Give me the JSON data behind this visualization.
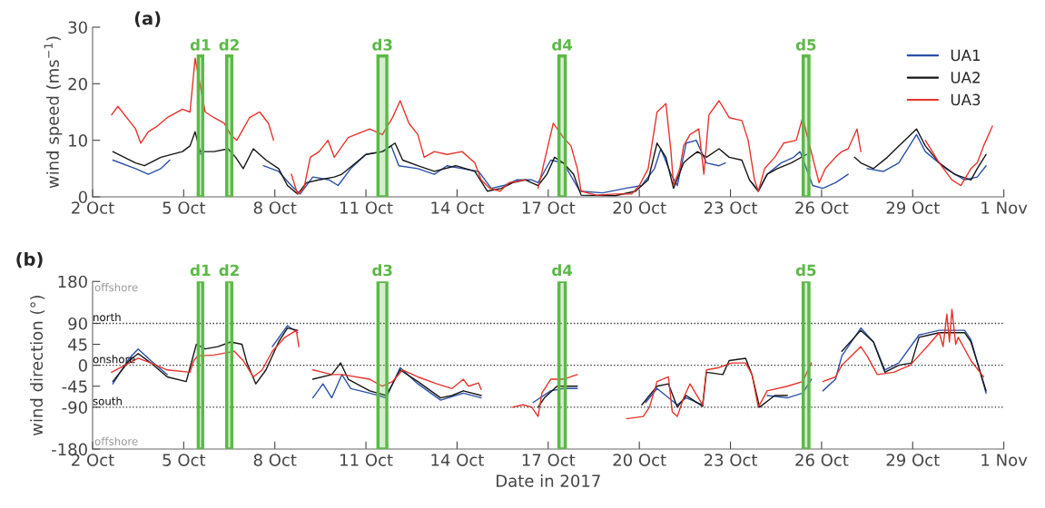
{
  "chart_data": [
    {
      "type": "line",
      "title": "(a)",
      "ylabel": "wind speed (ms$^{−1}$)",
      "legend": "top right",
      "grid": false,
      "xlim": [
        "2017-10-02",
        "2017-11-01"
      ],
      "xticks": [
        {
          "value": "2017-10-02",
          "label": "2 Oct"
        },
        {
          "value": "2017-10-05",
          "label": "5 Oct"
        },
        {
          "value": "2017-10-08",
          "label": "8 Oct"
        },
        {
          "value": "2017-10-11",
          "label": "11 Oct"
        },
        {
          "value": "2017-10-14",
          "label": "14 Oct"
        },
        {
          "value": "2017-10-17",
          "label": "17 Oct"
        },
        {
          "value": "2017-10-20",
          "label": "20 Oct"
        },
        {
          "value": "2017-10-23",
          "label": "23 Oct"
        },
        {
          "value": "2017-10-26",
          "label": "26 Oct"
        },
        {
          "value": "2017-10-29",
          "label": "29 Oct"
        },
        {
          "value": "2017-11-01",
          "label": "1 Nov"
        }
      ],
      "ylim": [
        0,
        30
      ],
      "yticks": [
        0,
        10,
        20,
        30
      ],
      "bands": [
        {
          "axis": "x",
          "from": "2017-10-05T11:30",
          "to": "2017-10-05T15:00",
          "label": "d1",
          "color": "#5cb947"
        },
        {
          "axis": "x",
          "from": "2017-10-06T10:00",
          "to": "2017-10-06T14:00",
          "label": "d2",
          "color": "#5cb947"
        },
        {
          "axis": "x",
          "from": "2017-10-11T09:30",
          "to": "2017-10-11T16:30",
          "label": "d3",
          "color": "#5cb947"
        },
        {
          "axis": "x",
          "from": "2017-10-17T08:30",
          "to": "2017-10-17T13:30",
          "label": "d4",
          "color": "#5cb947"
        },
        {
          "axis": "x",
          "from": "2017-10-25T09:30",
          "to": "2017-10-25T14:00",
          "label": "d5",
          "color": "#5cb947"
        }
      ],
      "series": [
        {
          "name": "UA1",
          "color": "#2b50a8",
          "x": [
            "2017-10-02T16:00",
            "2017-10-03T10:00",
            "2017-10-03T20:00",
            "2017-10-04T06:00",
            "2017-10-04T13:00",
            "2017-10-05T00:00",
            "2017-10-05T11:00",
            "2017-10-05T14:00",
            "2017-10-06T12:00",
            "2017-10-07T15:00",
            "2017-10-08T03:00",
            "2017-10-08T13:00",
            "2017-10-08T20:00",
            "2017-10-09T06:00",
            "2017-10-09T19:00",
            "2017-10-10T02:00",
            "2017-10-10T12:00",
            "2017-10-11T00:00",
            "2017-10-11T13:00",
            "2017-10-11T20:00",
            "2017-10-12T02:00",
            "2017-10-12T17:00",
            "2017-10-13T06:00",
            "2017-10-13T16:00",
            "2017-10-14T04:00",
            "2017-10-14T17:00",
            "2017-10-15T03:00",
            "2017-10-15T13:00",
            "2017-10-15T23:00",
            "2017-10-16T11:00",
            "2017-10-16T16:00",
            "2017-10-17T02:00",
            "2017-10-17T12:00",
            "2017-10-18T01:00",
            "2017-10-18T19:00",
            "2017-10-19T13:00",
            "2017-10-20T02:00",
            "2017-10-20T12:00",
            "2017-10-20T17:00",
            "2017-10-21T01:00",
            "2017-10-21T06:00",
            "2017-10-21T13:00",
            "2017-10-21T21:00",
            "2017-10-22T05:00",
            "2017-10-22T15:00",
            "2017-10-22T20:00",
            "2017-10-23T06:00",
            "2017-10-23T17:00",
            "2017-10-23T22:00",
            "2017-10-24T05:00",
            "2017-10-24T16:00",
            "2017-10-25T02:00",
            "2017-10-25T07:00",
            "2017-10-25T17:00",
            "2017-10-26T01:00",
            "2017-10-26T11:00",
            "2017-10-26T21:00",
            "2017-10-27T05:00",
            "2017-10-27T12:00",
            "2017-10-28T01:00",
            "2017-10-28T13:00",
            "2017-10-29T03:00",
            "2017-10-29T10:00",
            "2017-10-30T02:00",
            "2017-10-30T17:00",
            "2017-10-31T03:00",
            "2017-10-31T10:00"
          ],
          "values": [
            6.5,
            5,
            4,
            5,
            6.5,
            null,
            8,
            7.5,
            null,
            5.5,
            4.5,
            2,
            0.5,
            3.5,
            3,
            2,
            5,
            7.5,
            8,
            9,
            5.5,
            5,
            4,
            5.5,
            5,
            4.5,
            1.5,
            2,
            3,
            3,
            2.5,
            6.5,
            6,
            1,
            0.7,
            1.5,
            2,
            5,
            8.5,
            4,
            2,
            9.5,
            10,
            6,
            5.5,
            6,
            null,
            2.5,
            1,
            4,
            6,
            7,
            8,
            2,
            1.5,
            2.5,
            4,
            null,
            5,
            4.5,
            6,
            11,
            8,
            5,
            3,
            3.5,
            5.5
          ]
        },
        {
          "name": "UA2",
          "color": "#151515",
          "x": [
            "2017-10-02T16:00",
            "2017-10-03T10:00",
            "2017-10-03T17:00",
            "2017-10-04T06:00",
            "2017-10-04T23:00",
            "2017-10-05T05:00",
            "2017-10-05T09:00",
            "2017-10-05T13:00",
            "2017-10-06T00:00",
            "2017-10-06T11:00",
            "2017-10-06T17:00",
            "2017-10-06T23:00",
            "2017-10-07T07:00",
            "2017-10-07T17:00",
            "2017-10-08T03:00",
            "2017-10-08T10:00",
            "2017-10-08T18:00",
            "2017-10-09T01:00",
            "2017-10-09T11:00",
            "2017-10-09T23:00",
            "2017-10-10T05:00",
            "2017-10-11T00:00",
            "2017-10-11T13:00",
            "2017-10-11T23:00",
            "2017-10-12T05:00",
            "2017-10-12T17:00",
            "2017-10-13T06:00",
            "2017-10-13T23:00",
            "2017-10-14T14:00",
            "2017-10-15T00:00",
            "2017-10-15T11:00",
            "2017-10-15T20:00",
            "2017-10-16T06:00",
            "2017-10-16T16:00",
            "2017-10-16T23:00",
            "2017-10-17T05:00",
            "2017-10-17T12:00",
            "2017-10-17T20:00",
            "2017-10-18T02:00",
            "2017-10-19T05:00",
            "2017-10-19T21:00",
            "2017-10-20T07:00",
            "2017-10-20T14:00",
            "2017-10-20T21:00",
            "2017-10-21T03:00",
            "2017-10-21T11:00",
            "2017-10-21T16:00",
            "2017-10-21T22:00",
            "2017-10-22T05:00",
            "2017-10-22T15:00",
            "2017-10-22T23:00",
            "2017-10-23T09:00",
            "2017-10-23T15:00",
            "2017-10-23T22:00",
            "2017-10-24T05:00",
            "2017-10-24T13:00",
            "2017-10-25T00:00",
            "2017-10-25T12:00",
            "2017-10-26T00:00",
            "2017-10-27T02:00",
            "2017-10-27T07:00",
            "2017-10-27T17:00",
            "2017-10-28T04:00",
            "2017-10-28T13:00",
            "2017-10-29T03:00",
            "2017-10-29T10:00",
            "2017-10-29T21:00",
            "2017-10-30T09:00",
            "2017-10-30T22:00",
            "2017-10-31T03:00",
            "2017-10-31T10:00"
          ],
          "values": [
            8,
            6,
            5.5,
            7,
            8,
            9,
            11.5,
            8,
            8,
            8.5,
            7,
            5,
            8.5,
            6.5,
            5,
            2,
            0.5,
            2.5,
            3,
            3.5,
            4,
            7.5,
            8,
            9.5,
            6.5,
            5.5,
            4.5,
            5.5,
            4.5,
            1,
            1.5,
            2.5,
            3,
            2,
            4,
            7,
            6,
            4,
            0.3,
            0.2,
            1,
            3,
            9.5,
            7,
            1.5,
            6,
            7,
            8,
            7,
            8.5,
            7,
            6.5,
            3,
            1,
            4,
            5,
            6,
            7.5,
            null,
            7,
            6,
            5,
            7,
            9,
            12,
            9,
            6,
            4,
            3,
            5,
            7.5
          ]
        },
        {
          "name": "UA3",
          "color": "#e8332b",
          "x": [
            "2017-10-02T15:00",
            "2017-10-02T20:00",
            "2017-10-03T10:00",
            "2017-10-03T14:00",
            "2017-10-03T20:00",
            "2017-10-04T03:00",
            "2017-10-04T11:00",
            "2017-10-04T23:00",
            "2017-10-05T05:00",
            "2017-10-05T09:00",
            "2017-10-05T17:00",
            "2017-10-06T00:00",
            "2017-10-06T08:00",
            "2017-10-06T13:00",
            "2017-10-06T18:00",
            "2017-10-06T23:00",
            "2017-10-07T04:00",
            "2017-10-07T12:00",
            "2017-10-07T19:00",
            "2017-10-07T23:00",
            "2017-10-08T06:00",
            "2017-10-08T13:00",
            "2017-10-08T18:00",
            "2017-10-08T23:00",
            "2017-10-09T04:00",
            "2017-10-09T11:00",
            "2017-10-09T18:00",
            "2017-10-09T23:00",
            "2017-10-10T10:00",
            "2017-10-11T03:00",
            "2017-10-11T13:00",
            "2017-10-11T21:00",
            "2017-10-12T03:00",
            "2017-10-12T10:00",
            "2017-10-12T17:00",
            "2017-10-12T22:00",
            "2017-10-13T06:00",
            "2017-10-13T16:00",
            "2017-10-14T04:00",
            "2017-10-14T14:00",
            "2017-10-14T19:00",
            "2017-10-15T02:00",
            "2017-10-15T10:00",
            "2017-10-15T17:00",
            "2017-10-16T06:00",
            "2017-10-16T10:00",
            "2017-10-16T16:00",
            "2017-10-17T04:00",
            "2017-10-17T12:00",
            "2017-10-17T18:00",
            "2017-10-17T23:00",
            "2017-10-18T02:00",
            "2017-10-18T14:00",
            "2017-10-19T05:00",
            "2017-10-19T18:00",
            "2017-10-20T00:00",
            "2017-10-20T07:00",
            "2017-10-20T14:00",
            "2017-10-20T21:00",
            "2017-10-21T01:00",
            "2017-10-21T03:00",
            "2017-10-21T08:00",
            "2017-10-21T11:00",
            "2017-10-21T16:00",
            "2017-10-21T23:00",
            "2017-10-22T03:00",
            "2017-10-22T07:00",
            "2017-10-22T15:00",
            "2017-10-22T23:00",
            "2017-10-23T09:00",
            "2017-10-23T14:00",
            "2017-10-23T19:00",
            "2017-10-23T22:00",
            "2017-10-24T03:00",
            "2017-10-24T11:00",
            "2017-10-24T18:00",
            "2017-10-25T04:00",
            "2017-10-25T09:00",
            "2017-10-25T22:00",
            "2017-10-26T03:00",
            "2017-10-26T11:00",
            "2017-10-26T16:00",
            "2017-10-26T21:00",
            "2017-10-27T04:00",
            "2017-10-27T07:00",
            "2017-10-28T08:00",
            "2017-10-29T10:00",
            "2017-10-29T21:00",
            "2017-10-30T07:00",
            "2017-10-30T14:00",
            "2017-10-30T22:00",
            "2017-10-31T03:00",
            "2017-10-31T08:00",
            "2017-10-31T15:00"
          ],
          "values": [
            14.5,
            16,
            12,
            9.5,
            11.5,
            12.5,
            14,
            15.5,
            15,
            24.5,
            15,
            14,
            13,
            11,
            10,
            12,
            14,
            15,
            13,
            10,
            null,
            4,
            0.5,
            1.5,
            7,
            8,
            10,
            7,
            10.5,
            12,
            11,
            14,
            17,
            13,
            11,
            7,
            8,
            7.5,
            8,
            6,
            3,
            1.5,
            1,
            2.5,
            3,
            null,
            1.5,
            13,
            10.5,
            9,
            5,
            1,
            0.3,
            0.5,
            0.5,
            2,
            5,
            15,
            16.5,
            8,
            2,
            5,
            9,
            11,
            12,
            4,
            14.5,
            17,
            14,
            13.5,
            10,
            3,
            1,
            5,
            7,
            9.5,
            10,
            14,
            2.5,
            5,
            7,
            8,
            8.5,
            12,
            8,
            null,
            10,
            6,
            3,
            2,
            5,
            6,
            9,
            12.5
          ]
        }
      ]
    },
    {
      "type": "line",
      "title": "(b)",
      "xlabel": "Date in 2017",
      "ylabel": "wind direction (°)",
      "grid": false,
      "xlim": [
        "2017-10-02",
        "2017-11-01"
      ],
      "xticks": [
        {
          "value": "2017-10-02",
          "label": "2 Oct"
        },
        {
          "value": "2017-10-05",
          "label": "5 Oct"
        },
        {
          "value": "2017-10-08",
          "label": "8 Oct"
        },
        {
          "value": "2017-10-11",
          "label": "11 Oct"
        },
        {
          "value": "2017-10-14",
          "label": "14 Oct"
        },
        {
          "value": "2017-10-17",
          "label": "17 Oct"
        },
        {
          "value": "2017-10-20",
          "label": "20 Oct"
        },
        {
          "value": "2017-10-23",
          "label": "23 Oct"
        },
        {
          "value": "2017-10-26",
          "label": "26 Oct"
        },
        {
          "value": "2017-10-29",
          "label": "29 Oct"
        },
        {
          "value": "2017-11-01",
          "label": "1 Nov"
        }
      ],
      "ylim": [
        -180,
        180
      ],
      "yticks": [
        -180,
        -90,
        -45,
        0,
        45,
        90,
        180
      ],
      "ref_lines": [
        {
          "axis": "y",
          "value": 90,
          "label": "north",
          "color": "#333333",
          "line_style": "dotted"
        },
        {
          "axis": "y",
          "value": 0,
          "label": "onshore",
          "color": "#333333",
          "line_style": "dotted"
        },
        {
          "axis": "y",
          "value": -90,
          "label": "south",
          "color": "#333333",
          "line_style": "dotted"
        }
      ],
      "annotations": [
        "offshore",
        "offshore"
      ],
      "bands": [
        {
          "axis": "x",
          "from": "2017-10-05T11:30",
          "to": "2017-10-05T15:00",
          "label": "d1",
          "color": "#5cb947"
        },
        {
          "axis": "x",
          "from": "2017-10-06T10:00",
          "to": "2017-10-06T14:00",
          "label": "d2",
          "color": "#5cb947"
        },
        {
          "axis": "x",
          "from": "2017-10-11T09:30",
          "to": "2017-10-11T16:30",
          "label": "d3",
          "color": "#5cb947"
        },
        {
          "axis": "x",
          "from": "2017-10-17T08:30",
          "to": "2017-10-17T13:30",
          "label": "d4",
          "color": "#5cb947"
        },
        {
          "axis": "x",
          "from": "2017-10-25T09:30",
          "to": "2017-10-25T14:00",
          "label": "d5",
          "color": "#5cb947"
        }
      ],
      "series": [
        {
          "color": "#2b50a8",
          "x": [
            "2017-10-02T16:00",
            "2017-10-03T05:00",
            "2017-10-03T12:00",
            "2017-10-03T22:00",
            "2017-10-04T11:00",
            "2017-10-05T00:00",
            "2017-10-07T22:00",
            "2017-10-08T10:00",
            "2017-10-08T18:00",
            "2017-10-09T00:00",
            "2017-10-09T06:00",
            "2017-10-09T14:00",
            "2017-10-09T21:00",
            "2017-10-10T05:00",
            "2017-10-10T12:00",
            "2017-10-11T03:00",
            "2017-10-11T16:00",
            "2017-10-12T03:00",
            "2017-10-12T17:00",
            "2017-10-13T11:00",
            "2017-10-14T05:00",
            "2017-10-14T19:00",
            "2017-10-15T12:00",
            "2017-10-16T12:00",
            "2017-10-17T02:00",
            "2017-10-17T12:00",
            "2017-10-17T23:00",
            "2017-10-18T12:00",
            "2017-10-20T05:00",
            "2017-10-20T14:00",
            "2017-10-21T06:00",
            "2017-10-21T13:00",
            "2017-10-22T02:00",
            "2017-10-22T12:00",
            "2017-10-24T05:00",
            "2017-10-24T21:00",
            "2017-10-25T09:00",
            "2017-10-25T16:00",
            "2017-10-25T20:00",
            "2017-10-26T01:00",
            "2017-10-26T11:00",
            "2017-10-26T16:00",
            "2017-10-27T07:00",
            "2017-10-27T17:00",
            "2017-10-28T02:00",
            "2017-10-28T13:00",
            "2017-10-29T05:00",
            "2017-10-29T21:00",
            "2017-10-30T17:00",
            "2017-10-30T22:00",
            "2017-10-31T10:00"
          ],
          "values": [
            -40,
            15,
            35,
            10,
            -20,
            null,
            40,
            85,
            70,
            null,
            -70,
            -40,
            -70,
            -20,
            -50,
            -60,
            -70,
            -5,
            -40,
            -75,
            -60,
            -70,
            null,
            -80,
            -55,
            -50,
            -50,
            null,
            -80,
            -50,
            -85,
            -70,
            -85,
            null,
            -65,
            -70,
            -60,
            -30,
            null,
            -55,
            -30,
            20,
            80,
            50,
            -10,
            5,
            65,
            75,
            75,
            55,
            -60
          ]
        },
        {
          "color": "#151515",
          "x": [
            "2017-10-02T16:00",
            "2017-10-03T05:00",
            "2017-10-03T12:00",
            "2017-10-03T22:00",
            "2017-10-04T11:00",
            "2017-10-05T02:00",
            "2017-10-05T10:00",
            "2017-10-05T17:00",
            "2017-10-06T03:00",
            "2017-10-06T13:00",
            "2017-10-06T22:00",
            "2017-10-07T02:00",
            "2017-10-07T09:00",
            "2017-10-07T17:00",
            "2017-10-08T03:00",
            "2017-10-08T10:00",
            "2017-10-08T18:00",
            "2017-10-09T00:00",
            "2017-10-09T06:00",
            "2017-10-09T21:00",
            "2017-10-10T04:00",
            "2017-10-10T10:00",
            "2017-10-11T03:00",
            "2017-10-11T16:00",
            "2017-10-12T03:00",
            "2017-10-12T17:00",
            "2017-10-13T11:00",
            "2017-10-13T20:00",
            "2017-10-14T05:00",
            "2017-10-14T19:00",
            "2017-10-15T08:00",
            "2017-10-16T16:00",
            "2017-10-16T21:00",
            "2017-10-17T07:00",
            "2017-10-17T23:00",
            "2017-10-18T12:00",
            "2017-10-20T02:00",
            "2017-10-20T14:00",
            "2017-10-20T23:00",
            "2017-10-21T06:00",
            "2017-10-21T13:00",
            "2017-10-22T02:00",
            "2017-10-22T05:00",
            "2017-10-22T18:00",
            "2017-10-22T23:00",
            "2017-10-23T12:00",
            "2017-10-23T17:00",
            "2017-10-23T23:00",
            "2017-10-24T11:00",
            "2017-10-24T21:00",
            "2017-10-25T06:00",
            "2017-10-26T16:00",
            "2017-10-27T07:00",
            "2017-10-27T17:00",
            "2017-10-28T02:00",
            "2017-10-28T13:00",
            "2017-10-28T23:00",
            "2017-10-29T05:00",
            "2017-10-29T21:00",
            "2017-10-30T17:00",
            "2017-10-30T22:00",
            "2017-10-31T10:00"
          ],
          "values": [
            -35,
            10,
            25,
            5,
            -25,
            -35,
            45,
            35,
            40,
            50,
            45,
            5,
            -40,
            -10,
            50,
            80,
            75,
            null,
            -30,
            -20,
            5,
            -30,
            -55,
            -65,
            -10,
            -35,
            -70,
            -65,
            -55,
            -65,
            null,
            -90,
            -70,
            -45,
            -45,
            null,
            -85,
            -45,
            -40,
            -90,
            -65,
            -88,
            -15,
            -20,
            10,
            15,
            -20,
            -90,
            -65,
            -65,
            null,
            30,
            75,
            50,
            -15,
            0,
            5,
            60,
            70,
            70,
            50,
            -55
          ]
        },
        {
          "color": "#e8332b",
          "x": [
            "2017-10-02T15:00",
            "2017-10-03T05:00",
            "2017-10-03T12:00",
            "2017-10-03T22:00",
            "2017-10-04T11:00",
            "2017-10-05T05:00",
            "2017-10-05T08:00",
            "2017-10-05T11:00",
            "2017-10-06T00:00",
            "2017-10-06T16:00",
            "2017-10-06T23:00",
            "2017-10-07T07:00",
            "2017-10-07T14:00",
            "2017-10-07T22:00",
            "2017-10-08T08:00",
            "2017-10-08T17:00",
            "2017-10-08T19:00",
            "2017-10-09T00:00",
            "2017-10-09T06:00",
            "2017-10-09T14:00",
            "2017-10-09T21:00",
            "2017-10-10T05:00",
            "2017-10-11T03:00",
            "2017-10-11T13:00",
            "2017-10-11T21:00",
            "2017-10-12T05:00",
            "2017-10-12T17:00",
            "2017-10-13T08:00",
            "2017-10-13T20:00",
            "2017-10-14T05:00",
            "2017-10-14T09:00",
            "2017-10-14T17:00",
            "2017-10-14T19:00",
            "2017-10-15T08:00",
            "2017-10-15T20:00",
            "2017-10-16T04:00",
            "2017-10-16T11:00",
            "2017-10-16T16:00",
            "2017-10-16T19:00",
            "2017-10-17T02:00",
            "2017-10-17T12:00",
            "2017-10-17T23:00",
            "2017-10-18T12:00",
            "2017-10-19T14:00",
            "2017-10-20T03:00",
            "2017-10-20T08:00",
            "2017-10-20T14:00",
            "2017-10-20T23:00",
            "2017-10-21T02:00",
            "2017-10-21T06:00",
            "2017-10-21T11:00",
            "2017-10-21T16:00",
            "2017-10-22T02:00",
            "2017-10-22T05:00",
            "2017-10-22T15:00",
            "2017-10-23T01:00",
            "2017-10-23T12:00",
            "2017-10-23T17:00",
            "2017-10-23T22:00",
            "2017-10-24T05:00",
            "2017-10-24T21:00",
            "2017-10-25T09:00",
            "2017-10-25T16:00",
            "2017-10-25T20:00",
            "2017-10-26T01:00",
            "2017-10-26T11:00",
            "2017-10-26T16:00",
            "2017-10-27T07:00",
            "2017-10-27T12:00",
            "2017-10-27T20:00",
            "2017-10-28T09:00",
            "2017-10-28T22:00",
            "2017-10-29T13:00",
            "2017-10-29T21:00",
            "2017-10-30T00:00",
            "2017-10-30T03:00",
            "2017-10-30T05:00",
            "2017-10-30T07:00",
            "2017-10-30T10:00",
            "2017-10-30T12:00",
            "2017-10-30T22:00",
            "2017-10-31T08:00"
          ],
          "values": [
            -15,
            5,
            15,
            5,
            -10,
            -15,
            10,
            20,
            22,
            30,
            10,
            -25,
            -10,
            30,
            60,
            75,
            40,
            null,
            -10,
            -15,
            -20,
            -20,
            -30,
            -45,
            -35,
            -10,
            -25,
            -40,
            -50,
            -30,
            -45,
            -38,
            -52,
            null,
            -90,
            -85,
            -90,
            -110,
            -60,
            -30,
            -30,
            -20,
            null,
            -115,
            -110,
            -90,
            -35,
            -25,
            -100,
            -110,
            -70,
            -40,
            -85,
            -10,
            -5,
            5,
            5,
            -20,
            -90,
            -55,
            -45,
            -35,
            5,
            null,
            -35,
            -25,
            0,
            40,
            20,
            -20,
            -15,
            0,
            45,
            70,
            40,
            110,
            50,
            120,
            45,
            60,
            10,
            -25
          ]
        }
      ]
    }
  ]
}
